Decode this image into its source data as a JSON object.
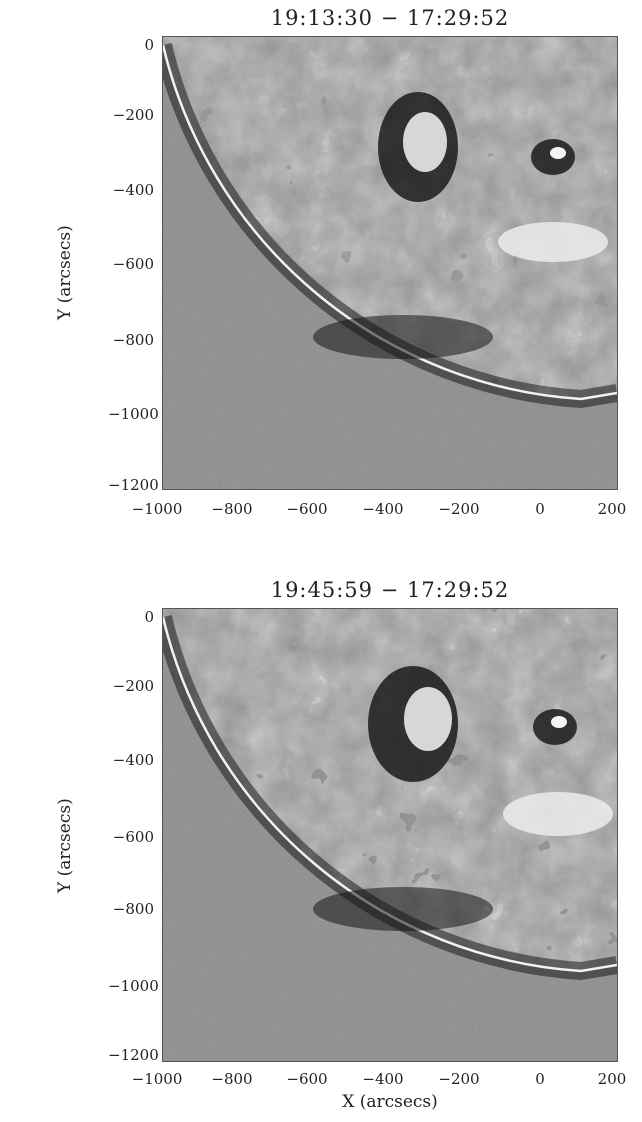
{
  "panels": [
    {
      "title": "19:13:30 − 17:29:52",
      "ylabel": "Y (arcsecs)",
      "yticks": [
        "0",
        "−200",
        "−400",
        "−600",
        "−800",
        "−1000",
        "−1200"
      ],
      "xticks": [
        "−1000",
        "−800",
        "−600",
        "−400",
        "−200",
        "0",
        "200"
      ]
    },
    {
      "title": "19:45:59 − 17:29:52",
      "ylabel": "Y (arcsecs)",
      "yticks": [
        "0",
        "−200",
        "−400",
        "−600",
        "−800",
        "−1000",
        "−1200"
      ],
      "xticks": [
        "−1000",
        "−800",
        "−600",
        "−400",
        "−200",
        "0",
        "200"
      ],
      "xlabel": "X (arcsecs)"
    }
  ],
  "colors": {
    "background": "#8c8c8c",
    "limb": "#f2f2f2",
    "dark": "#111111",
    "bright": "#f5f5f5"
  }
}
